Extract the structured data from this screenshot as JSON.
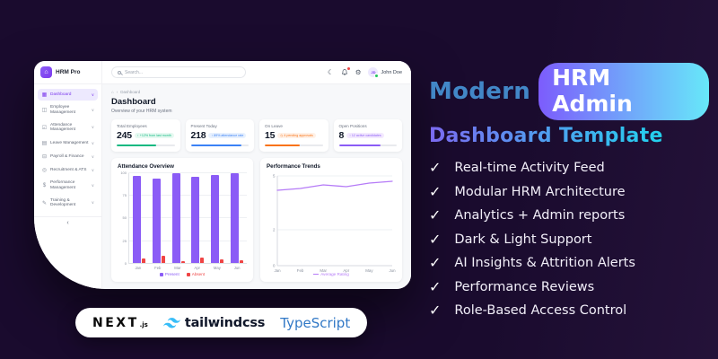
{
  "app": {
    "brand": "HRM Pro",
    "logo_icon": "⌂",
    "sidebar": {
      "chevron": "∨",
      "collapse_icon": "‹",
      "items": [
        {
          "label": "Dashboard",
          "icon": "▦",
          "icon_name": "grid-icon",
          "active": true
        },
        {
          "label": "Employee Management",
          "icon": "◫",
          "icon_name": "people-icon",
          "active": false
        },
        {
          "label": "Attendance Management",
          "icon": "☑",
          "icon_name": "calendar-check-icon",
          "active": false
        },
        {
          "label": "Leave Management",
          "icon": "▤",
          "icon_name": "calendar-icon",
          "active": false
        },
        {
          "label": "Payroll & Finance",
          "icon": "⊟",
          "icon_name": "wallet-icon",
          "active": false
        },
        {
          "label": "Recruitment & ATS",
          "icon": "◎",
          "icon_name": "target-icon",
          "active": false
        },
        {
          "label": "Performance Management",
          "icon": "$",
          "icon_name": "dollar-icon",
          "active": false
        },
        {
          "label": "Training & Development",
          "icon": "✎",
          "icon_name": "graduation-cap-icon",
          "active": false
        }
      ]
    },
    "topbar": {
      "search_placeholder": "Search...",
      "moon_icon": "☾",
      "gear_icon": "⚙",
      "user_initials": "JD",
      "user_name": "John Doe"
    },
    "breadcrumb": {
      "home_icon": "⌂",
      "separator": "›",
      "current": "Dashboard"
    },
    "page": {
      "title": "Dashboard",
      "subtitle": "Overview of your HRM system"
    },
    "stats": [
      {
        "label": "Total Employees",
        "value": "245",
        "badge": "↑ +12% from last month",
        "color": "#10b981",
        "badge_bg": "#e6f9f1",
        "progress": 68
      },
      {
        "label": "Present Today",
        "value": "218",
        "badge": "↑ 89% attendance rate",
        "color": "#3b82f6",
        "badge_bg": "#e8f1fe",
        "progress": 88
      },
      {
        "label": "On Leave",
        "value": "15",
        "badge": "◷ 4 pending approvals",
        "color": "#f97316",
        "badge_bg": "#fff1e7",
        "progress": 60
      },
      {
        "label": "Open Positions",
        "value": "8",
        "badge": "↑ 12 active candidates",
        "color": "#8b5cf6",
        "badge_bg": "#f3e9fe",
        "progress": 72
      }
    ]
  },
  "chart_data": [
    {
      "type": "bar",
      "title": "Attendance Overview",
      "categories": [
        "Jan",
        "Feb",
        "Mar",
        "Apr",
        "May",
        "Jun"
      ],
      "series": [
        {
          "name": "Present",
          "color": "#8b5cf6",
          "values": [
            97,
            94,
            100,
            96,
            98,
            100
          ]
        },
        {
          "name": "Absent",
          "color": "#ef4444",
          "values": [
            5,
            8,
            2,
            6,
            4,
            3
          ]
        }
      ],
      "ylim": [
        0,
        100
      ],
      "yticks": [
        0,
        25,
        50,
        75,
        100
      ],
      "grid": true,
      "legend_position": "bottom"
    },
    {
      "type": "line",
      "title": "Performance Trends",
      "x": [
        "Jan",
        "Feb",
        "Mar",
        "Apr",
        "May",
        "Jun"
      ],
      "series": [
        {
          "name": "Average Rating",
          "color": "#b57bf7",
          "values": [
            4.2,
            4.3,
            4.5,
            4.4,
            4.6,
            4.7
          ]
        }
      ],
      "ylim": [
        0,
        5
      ],
      "yticks": [
        0,
        2,
        5
      ],
      "grid": true,
      "legend_position": "bottom"
    }
  ],
  "promo": {
    "title_lead": "Modern",
    "title_pill": "HRM Admin",
    "title_line2": "Dashboard Template",
    "check_icon": "✓",
    "features": [
      "Real-time Activity Feed",
      "Modular HRM Architecture",
      "Analytics + Admin reports",
      "Dark & Light Support",
      "AI Insights & Attrition Alerts",
      "Performance Reviews",
      "Role-Based Access Control"
    ],
    "colors": {
      "lead": "#4287c7",
      "pill_from": "#7c5cfc",
      "pill_to": "#67e8f9",
      "line2_from": "#7c6af0",
      "line2_to": "#22d3ee"
    }
  },
  "tech": {
    "next_label": "NEXT",
    "next_suffix": ".js",
    "tailwind_label": "tailwindcss",
    "tailwind_color": "#38bdf8",
    "typescript_label": "TypeScript",
    "typescript_color": "#3178c6"
  }
}
